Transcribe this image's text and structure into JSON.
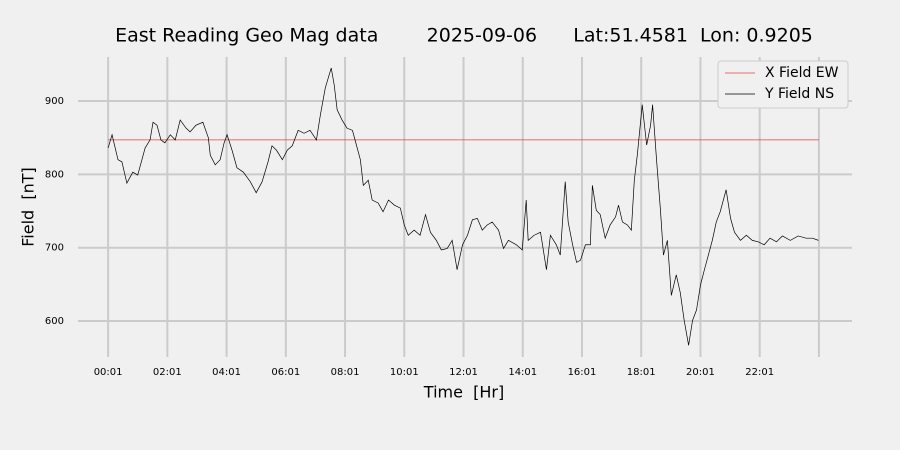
{
  "chart_data": {
    "type": "line",
    "title": "East Reading Geo Mag data        2025-09-06      Lat:51.4581  Lon: 0.9205",
    "xlabel": "Time  [Hr]",
    "ylabel": "Field  [nT]",
    "xlim": [
      -60,
      1508
    ],
    "ylim": [
      551,
      960
    ],
    "xticks": [
      {
        "value": 1,
        "label": "00:01"
      },
      {
        "value": 121,
        "label": "02:01"
      },
      {
        "value": 241,
        "label": "04:01"
      },
      {
        "value": 361,
        "label": "06:01"
      },
      {
        "value": 481,
        "label": "08:01"
      },
      {
        "value": 601,
        "label": "10:01"
      },
      {
        "value": 721,
        "label": "12:01"
      },
      {
        "value": 841,
        "label": "14:01"
      },
      {
        "value": 961,
        "label": "16:01"
      },
      {
        "value": 1081,
        "label": "18:01"
      },
      {
        "value": 1201,
        "label": "20:01"
      },
      {
        "value": 1321,
        "label": "22:01"
      },
      {
        "value": 1441,
        "label": null
      }
    ],
    "yticks": [
      600,
      700,
      800,
      900
    ],
    "grid": true,
    "legend": "upper right",
    "series": [
      {
        "name": "X Field EW",
        "color": "#e8413c",
        "x": [
          1,
          1441
        ],
        "values": [
          847,
          847
        ]
      },
      {
        "name": "Y Field NS",
        "color": "#000000",
        "x": [
          1,
          9,
          21,
          29,
          39,
          51,
          61,
          76,
          86,
          92,
          100,
          108,
          116,
          127,
          137,
          147,
          159,
          167,
          179,
          193,
          204,
          208,
          218,
          228,
          236,
          242,
          252,
          262,
          275,
          289,
          301,
          313,
          325,
          333,
          342,
          354,
          364,
          374,
          386,
          398,
          410,
          423,
          431,
          441,
          453,
          459,
          465,
          475,
          485,
          496,
          504,
          512,
          518,
          528,
          536,
          548,
          558,
          569,
          581,
          593,
          601,
          609,
          621,
          633,
          644,
          654,
          666,
          676,
          688,
          698,
          708,
          719,
          729,
          739,
          749,
          759,
          769,
          779,
          792,
          802,
          812,
          828,
          840,
          848,
          852,
          864,
          877,
          889,
          897,
          909,
          917,
          927,
          933,
          942,
          950,
          958,
          968,
          978,
          982,
          990,
          998,
          1008,
          1018,
          1029,
          1035,
          1043,
          1053,
          1061,
          1067,
          1073,
          1079,
          1083,
          1092,
          1100,
          1104,
          1112,
          1120,
          1126,
          1134,
          1142,
          1152,
          1160,
          1168,
          1177,
          1185,
          1193,
          1201,
          1209,
          1217,
          1225,
          1233,
          1241,
          1253,
          1262,
          1270,
          1282,
          1294,
          1306,
          1318,
          1330,
          1342,
          1355,
          1367,
          1383,
          1399,
          1415,
          1428,
          1440
        ],
        "values": [
          836,
          854,
          820,
          817,
          788,
          803,
          799,
          836,
          847,
          871,
          867,
          847,
          843,
          854,
          847,
          874,
          863,
          858,
          867,
          871,
          850,
          826,
          813,
          820,
          843,
          854,
          833,
          809,
          803,
          790,
          775,
          790,
          817,
          839,
          833,
          820,
          833,
          839,
          860,
          856,
          860,
          847,
          881,
          918,
          945,
          922,
          888,
          874,
          863,
          860,
          840,
          820,
          785,
          792,
          765,
          761,
          749,
          765,
          758,
          754,
          731,
          717,
          724,
          717,
          745,
          721,
          710,
          697,
          699,
          710,
          670,
          704,
          717,
          738,
          740,
          724,
          731,
          735,
          724,
          699,
          710,
          704,
          697,
          765,
          710,
          717,
          721,
          670,
          717,
          704,
          690,
          790,
          735,
          704,
          680,
          683,
          704,
          704,
          785,
          751,
          745,
          713,
          731,
          742,
          758,
          735,
          731,
          724,
          792,
          826,
          867,
          895,
          840,
          867,
          895,
          820,
          751,
          690,
          710,
          635,
          663,
          639,
          601,
          567,
          601,
          615,
          649,
          670,
          690,
          710,
          735,
          749,
          779,
          740,
          721,
          710,
          717,
          710,
          708,
          704,
          713,
          708,
          716,
          710,
          716,
          713,
          713,
          710
        ]
      }
    ]
  }
}
